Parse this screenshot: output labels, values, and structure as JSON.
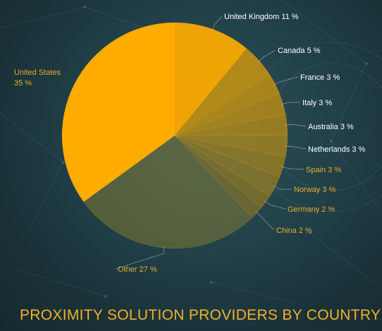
{
  "chart_data": {
    "type": "pie",
    "title": "PROXIMITY SOLUTION PROVIDERS BY COUNTRY",
    "unit": "%",
    "slices": [
      {
        "label": "United Kingdom",
        "value": 11
      },
      {
        "label": "Canada",
        "value": 5
      },
      {
        "label": "France",
        "value": 3
      },
      {
        "label": "Italy",
        "value": 3
      },
      {
        "label": "Australia",
        "value": 3
      },
      {
        "label": "Netherlands",
        "value": 3
      },
      {
        "label": "Spain",
        "value": 3
      },
      {
        "label": "Norway",
        "value": 3
      },
      {
        "label": "Germany",
        "value": 2
      },
      {
        "label": "China",
        "value": 2
      },
      {
        "label": "Other",
        "value": 27
      },
      {
        "label": "United States",
        "value": 35
      }
    ],
    "colors": {
      "primary_slice": "#ffab00",
      "faded_slice": "#c9950f",
      "label_light": "#ffffff",
      "label_gold": "#e5a92c",
      "title": "#f2b02c"
    }
  }
}
